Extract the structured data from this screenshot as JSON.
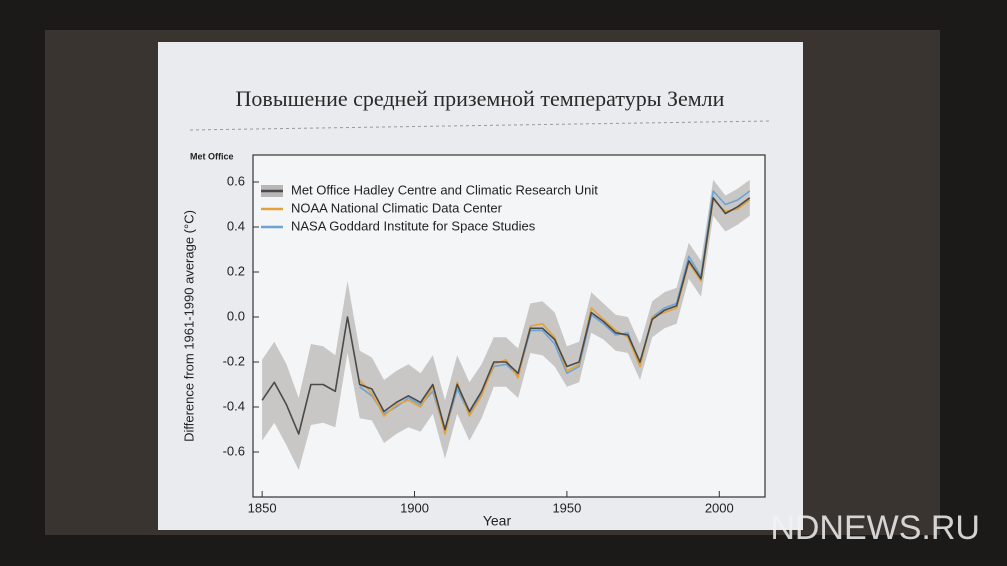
{
  "slide_title": "Повышение средней  приземной температуры Земли",
  "watermark": "NDNEWS.RU",
  "chart_data": {
    "type": "line",
    "source": "Met Office",
    "xlabel": "Year",
    "ylabel": "Difference from 1961-1990 average (°C)",
    "x": [
      1850,
      1854,
      1858,
      1862,
      1866,
      1870,
      1874,
      1878,
      1882,
      1886,
      1890,
      1894,
      1898,
      1902,
      1906,
      1910,
      1914,
      1918,
      1922,
      1926,
      1930,
      1934,
      1938,
      1942,
      1946,
      1950,
      1954,
      1958,
      1962,
      1966,
      1970,
      1974,
      1978,
      1982,
      1986,
      1990,
      1994,
      1998,
      2002,
      2006,
      2010
    ],
    "series": [
      {
        "name": "Met Office Hadley Centre and Climatic Research Unit",
        "color": "#4a4a4a",
        "values": [
          -0.37,
          -0.29,
          -0.39,
          -0.52,
          -0.3,
          -0.3,
          -0.33,
          0.0,
          -0.3,
          -0.32,
          -0.42,
          -0.38,
          -0.35,
          -0.38,
          -0.3,
          -0.5,
          -0.3,
          -0.42,
          -0.33,
          -0.2,
          -0.2,
          -0.25,
          -0.05,
          -0.05,
          -0.1,
          -0.22,
          -0.2,
          0.02,
          -0.02,
          -0.07,
          -0.08,
          -0.2,
          -0.01,
          0.03,
          0.05,
          0.25,
          0.17,
          0.53,
          0.46,
          0.49,
          0.53
        ],
        "lower": [
          -0.55,
          -0.47,
          -0.57,
          -0.68,
          -0.48,
          -0.47,
          -0.49,
          -0.16,
          -0.45,
          -0.46,
          -0.56,
          -0.52,
          -0.49,
          -0.51,
          -0.43,
          -0.63,
          -0.43,
          -0.55,
          -0.45,
          -0.31,
          -0.31,
          -0.36,
          -0.16,
          -0.17,
          -0.22,
          -0.31,
          -0.29,
          -0.07,
          -0.1,
          -0.15,
          -0.16,
          -0.28,
          -0.09,
          -0.05,
          -0.03,
          0.17,
          0.09,
          0.45,
          0.38,
          0.41,
          0.45
        ],
        "upper": [
          -0.19,
          -0.11,
          -0.21,
          -0.36,
          -0.12,
          -0.13,
          -0.17,
          0.16,
          -0.15,
          -0.18,
          -0.28,
          -0.24,
          -0.21,
          -0.25,
          -0.17,
          -0.37,
          -0.17,
          -0.29,
          -0.21,
          -0.09,
          -0.09,
          -0.14,
          0.06,
          0.07,
          0.02,
          -0.13,
          -0.11,
          0.11,
          0.06,
          0.01,
          0.0,
          -0.12,
          0.07,
          0.11,
          0.13,
          0.33,
          0.25,
          0.61,
          0.54,
          0.57,
          0.61
        ]
      },
      {
        "name": "NOAA National Climatic Data Center",
        "color": "#e2a23c",
        "values": [
          null,
          null,
          null,
          null,
          null,
          null,
          null,
          null,
          -0.28,
          -0.34,
          -0.44,
          -0.39,
          -0.37,
          -0.4,
          -0.31,
          -0.52,
          -0.29,
          -0.44,
          -0.35,
          -0.21,
          -0.19,
          -0.27,
          -0.04,
          -0.03,
          -0.09,
          -0.24,
          -0.21,
          0.04,
          -0.01,
          -0.06,
          -0.09,
          -0.22,
          0.0,
          0.02,
          0.04,
          0.24,
          0.16,
          0.52,
          0.47,
          0.48,
          0.52
        ]
      },
      {
        "name": "NASA Goddard Institute for Space Studies",
        "color": "#6ea3d3",
        "values": [
          null,
          null,
          null,
          null,
          null,
          null,
          null,
          null,
          -0.31,
          -0.35,
          -0.43,
          -0.4,
          -0.36,
          -0.39,
          -0.33,
          -0.51,
          -0.32,
          -0.43,
          -0.34,
          -0.22,
          -0.21,
          -0.26,
          -0.06,
          -0.06,
          -0.12,
          -0.25,
          -0.22,
          0.01,
          -0.03,
          -0.08,
          -0.07,
          -0.21,
          0.0,
          0.04,
          0.06,
          0.27,
          0.18,
          0.56,
          0.5,
          0.52,
          0.56
        ]
      }
    ],
    "xlim": [
      1847,
      2015
    ],
    "xticks": [
      1850,
      1900,
      1950,
      2000
    ],
    "ylim": [
      -0.8,
      0.72
    ],
    "yticks": [
      -0.6,
      -0.4,
      -0.2,
      {
        "value": 0,
        "label": "0.0"
      },
      0.2,
      0.4,
      0.6
    ],
    "band_color": "#b9b7b6",
    "legend": "upper left"
  }
}
